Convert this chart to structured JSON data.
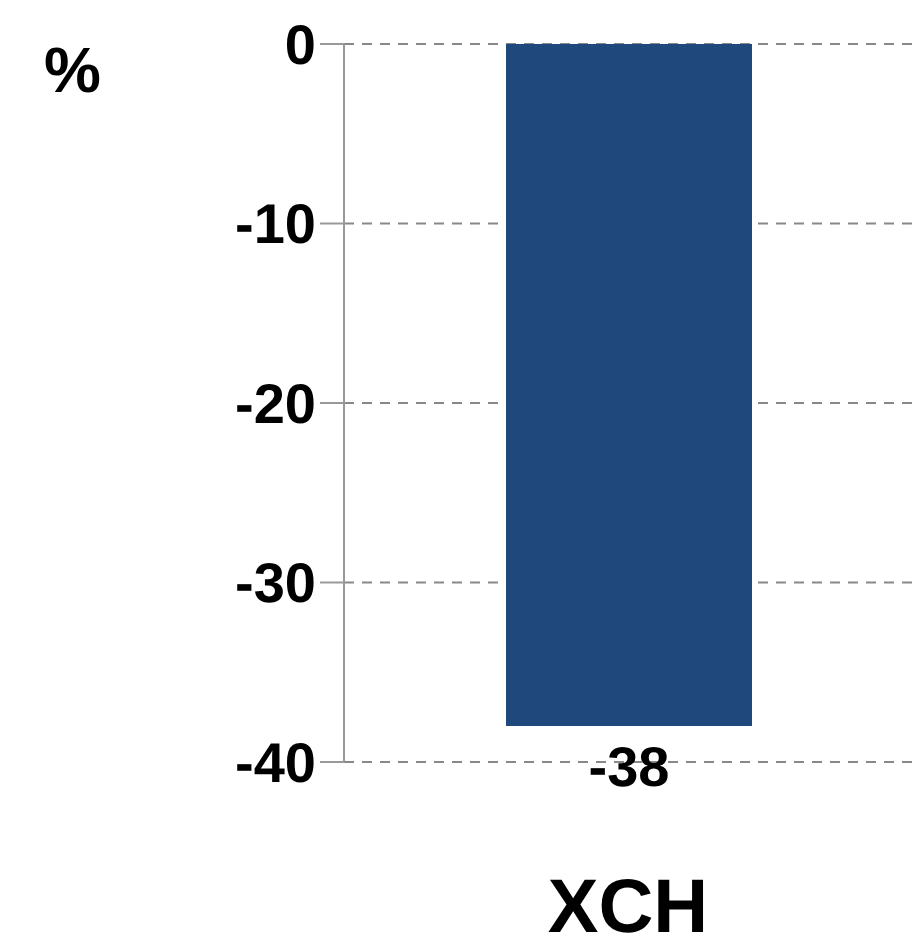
{
  "chart_data": {
    "type": "bar",
    "ylabel": "%",
    "categories": [
      "XCH"
    ],
    "values": [
      -38
    ],
    "color": "#1f487c",
    "ylim": [
      -40,
      0
    ],
    "yticks": [
      0,
      -10,
      -20,
      -30,
      -40
    ],
    "grid": "y",
    "data_labels": true
  }
}
